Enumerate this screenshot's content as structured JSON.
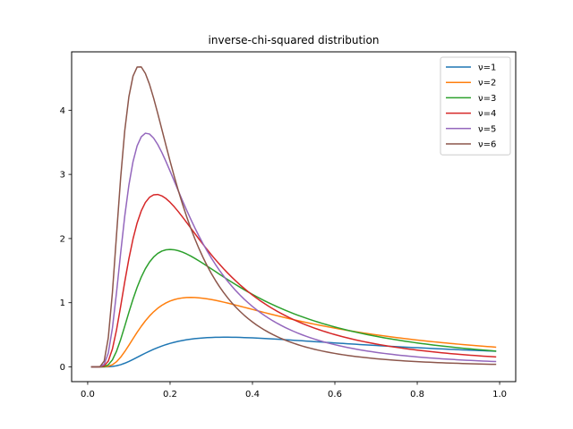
{
  "chart_data": {
    "type": "line",
    "title": "inverse-chi-squared distribution",
    "xlabel": "",
    "ylabel": "",
    "xlim": [
      -0.039,
      1.039
    ],
    "ylim": [
      -0.23,
      4.91
    ],
    "xticks": [
      0.0,
      0.2,
      0.4,
      0.6,
      0.8,
      1.0
    ],
    "xtick_labels": [
      "0.0",
      "0.2",
      "0.4",
      "0.6",
      "0.8",
      "1.0"
    ],
    "yticks": [
      0,
      1,
      2,
      3,
      4
    ],
    "ytick_labels": [
      "0",
      "1",
      "2",
      "3",
      "4"
    ],
    "grid": false,
    "legend": "top-right",
    "x_range": [
      0.01,
      0.99
    ],
    "x_step": 0.01,
    "series": [
      {
        "name": "ν=1",
        "nu": 1,
        "color": "#1f77b4"
      },
      {
        "name": "ν=2",
        "nu": 2,
        "color": "#ff7f0e"
      },
      {
        "name": "ν=3",
        "nu": 3,
        "color": "#2ca02c"
      },
      {
        "name": "ν=4",
        "nu": 4,
        "color": "#d62728"
      },
      {
        "name": "ν=5",
        "nu": 5,
        "color": "#9467bd"
      },
      {
        "name": "ν=6",
        "nu": 6,
        "color": "#8c564b"
      }
    ]
  }
}
